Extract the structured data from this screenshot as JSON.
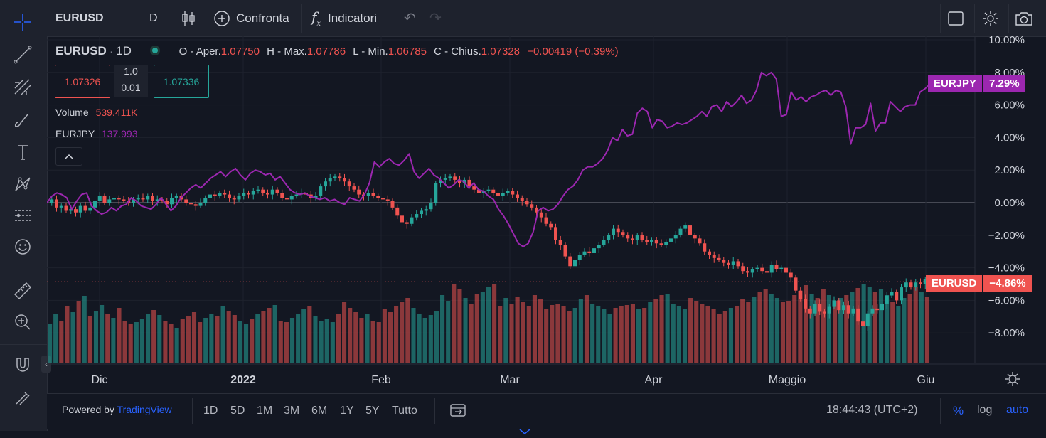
{
  "toolbar": {
    "symbol": "EURUSD",
    "interval": "D",
    "compare_label": "Confronta",
    "indicators_label": "Indicatori"
  },
  "legend": {
    "symbol": "EURUSD",
    "interval": "1D",
    "open_label": "O - Aper.",
    "open": "1.07750",
    "high_label": "H - Max.",
    "high": "1.07786",
    "low_label": "L - Min.",
    "low": "1.06785",
    "close_label": "C - Chius.",
    "close": "1.07328",
    "change": "−0.00419 (−0.39%)",
    "bid": "1.07326",
    "ask": "1.07336",
    "spread_top": "1.0",
    "spread_bottom": "0.01",
    "volume_label": "Volume",
    "volume_value": "539.411K",
    "compare_symbol": "EURJPY",
    "compare_value": "137.993"
  },
  "chart_data": {
    "type": "line",
    "x_axis_labels": [
      "Dic",
      "2022",
      "Feb",
      "Mar",
      "Apr",
      "Maggio",
      "Giu"
    ],
    "y_axis_labels": [
      "10.00%",
      "8.00%",
      "6.00%",
      "4.00%",
      "2.00%",
      "0.00%",
      "−2.00%",
      "−4.00%",
      "−6.00%",
      "−8.00%"
    ],
    "ylim": [
      -10,
      10
    ],
    "y_unit": "%",
    "series": [
      {
        "name": "EURJPY",
        "color": "#9c27b0",
        "badge_value": "7.29%",
        "values": [
          0.0,
          0.4,
          0.6,
          0.5,
          0.3,
          -0.4,
          0.1,
          0.5,
          0.6,
          -0.2,
          -0.5,
          -0.7,
          -0.6,
          -0.3,
          -0.5,
          -0.2,
          -0.1,
          0.3,
          0.1,
          -0.2,
          -0.3,
          -0.4,
          -0.1,
          0.3,
          -0.1,
          -0.5,
          -0.2,
          0.3,
          0.6,
          0.9,
          1.1,
          0.9,
          1.2,
          1.5,
          1.7,
          1.9,
          1.6,
          1.9,
          2.1,
          1.7,
          1.4,
          1.8,
          2.0,
          1.9,
          1.7,
          1.8,
          1.4,
          1.6,
          1.2,
          0.8,
          0.6,
          0.5,
          0.6,
          0.4,
          0.3,
          0.2,
          0.3,
          0.1,
          0.2,
          0.0,
          -0.1,
          0.3,
          0.2,
          0.1,
          0.5,
          1.2,
          2.5,
          2.2,
          2.5,
          2.7,
          2.4,
          2.3,
          2.6,
          3.0,
          1.9,
          1.5,
          1.8,
          2.1,
          1.7,
          1.5,
          1.2,
          0.9,
          1.1,
          1.4,
          1.3,
          0.9,
          1.2,
          0.8,
          0.7,
          0.4,
          0.2,
          -0.4,
          -0.8,
          -1.3,
          -1.9,
          -2.5,
          -2.7,
          -2.5,
          -1.8,
          -0.5,
          -0.3,
          -0.5,
          -0.4,
          -0.1,
          0.4,
          0.8,
          1.0,
          1.4,
          2.0,
          2.2,
          2.2,
          2.4,
          2.7,
          3.2,
          4.0,
          3.8,
          4.5,
          4.1,
          4.2,
          5.5,
          5.8,
          5.6,
          4.6,
          5.1,
          5.0,
          4.6,
          4.7,
          4.9,
          4.8,
          4.9,
          5.1,
          5.3,
          5.6,
          5.3,
          5.9,
          6.0,
          5.6,
          6.2,
          5.9,
          6.2,
          6.6,
          6.1,
          6.3,
          6.9,
          8.0,
          7.8,
          8.0,
          7.6,
          5.3,
          5.4,
          6.8,
          6.3,
          6.5,
          6.2,
          6.5,
          6.6,
          6.8,
          6.9,
          6.6,
          6.9,
          6.8,
          5.9,
          3.6,
          4.6,
          4.6,
          4.8,
          6.1,
          4.4,
          4.9,
          4.9,
          6.2,
          5.9,
          5.6,
          5.9,
          6.0,
          6.0,
          6.8,
          7.0,
          7.29
        ]
      },
      {
        "name": "EURUSD",
        "color": "#ef5350",
        "badge_value": "−4.86%",
        "values": [
          0.0,
          0.2,
          -0.3,
          -0.2,
          -0.5,
          -0.4,
          -0.6,
          -0.2,
          -0.5,
          -0.3,
          0.1,
          0.4,
          0.0,
          0.2,
          0.3,
          0.2,
          0.1,
          0.0,
          0.2,
          0.3,
          0.2,
          0.4,
          0.1,
          0.2,
          0.1,
          -0.1,
          0.3,
          0.4,
          0.2,
          0.0,
          -0.1,
          -0.2,
          0.0,
          0.3,
          0.5,
          0.4,
          0.6,
          0.5,
          0.3,
          0.2,
          0.4,
          0.6,
          0.5,
          0.7,
          0.8,
          0.6,
          0.5,
          0.8,
          0.6,
          0.3,
          0.2,
          0.4,
          0.5,
          0.6,
          0.5,
          0.3,
          0.4,
          1.0,
          1.3,
          1.5,
          1.6,
          1.5,
          1.3,
          1.0,
          0.8,
          0.5,
          0.4,
          0.6,
          0.4,
          0.3,
          0.2,
          0.1,
          -0.3,
          -0.8,
          -1.2,
          -1.3,
          -0.9,
          -0.7,
          -0.5,
          -0.4,
          0.0,
          1.2,
          1.4,
          1.5,
          1.6,
          1.4,
          1.2,
          1.4,
          1.0,
          0.8,
          0.6,
          0.7,
          0.8,
          0.6,
          0.4,
          0.6,
          0.7,
          0.5,
          0.3,
          0.1,
          -0.1,
          -0.3,
          -0.6,
          -0.9,
          -1.3,
          -1.5,
          -2.3,
          -2.6,
          -3.3,
          -3.9,
          -3.5,
          -3.2,
          -3.0,
          -3.1,
          -2.8,
          -2.6,
          -2.3,
          -2.0,
          -1.6,
          -1.8,
          -2.0,
          -2.2,
          -2.3,
          -2.0,
          -2.3,
          -2.4,
          -2.3,
          -2.5,
          -2.6,
          -2.4,
          -2.2,
          -2.0,
          -1.6,
          -1.4,
          -2.0,
          -2.2,
          -2.5,
          -3.0,
          -3.2,
          -3.4,
          -3.5,
          -3.7,
          -3.8,
          -3.6,
          -3.9,
          -4.2,
          -4.3,
          -4.1,
          -4.0,
          -4.2,
          -4.3,
          -3.8,
          -4.1,
          -4.0,
          -4.3,
          -4.6,
          -5.4,
          -5.9,
          -6.5,
          -6.8,
          -6.2,
          -6.7,
          -6.8,
          -6.4,
          -6.0,
          -6.6,
          -6.3,
          -6.8,
          -6.5,
          -7.3,
          -7.6,
          -6.8,
          -6.5,
          -6.6,
          -6.2,
          -5.7,
          -5.5,
          -6.0,
          -5.2,
          -4.9,
          -5.2,
          -4.9,
          -5.0,
          -4.7,
          -4.86
        ]
      }
    ],
    "volume_bars": [
      55,
      70,
      60,
      80,
      72,
      88,
      95,
      66,
      74,
      82,
      70,
      64,
      78,
      60,
      55,
      58,
      62,
      70,
      75,
      68,
      60,
      55,
      50,
      62,
      66,
      72,
      58,
      64,
      70,
      66,
      80,
      74,
      68,
      60,
      56,
      62,
      70,
      74,
      78,
      82,
      60,
      58,
      64,
      70,
      76,
      80,
      66,
      60,
      62,
      58,
      70,
      86,
      78,
      72,
      64,
      70,
      60,
      58,
      76,
      72,
      80,
      86,
      92,
      78,
      70,
      64,
      68,
      74,
      96,
      88,
      112,
      104,
      92,
      84,
      98,
      100,
      108,
      112,
      80,
      92,
      84,
      94,
      86,
      80,
      96,
      90,
      76,
      82,
      84,
      80,
      74,
      78,
      90,
      96,
      84,
      80,
      76,
      70,
      78,
      80,
      82,
      84,
      76,
      78,
      86,
      90,
      96,
      98,
      84,
      80,
      76,
      92,
      88,
      84,
      80,
      76,
      70,
      74,
      78,
      80,
      90,
      86,
      94,
      100,
      104,
      98,
      92,
      86,
      88,
      96,
      102,
      110,
      98,
      92,
      104,
      96,
      88,
      92,
      96,
      100,
      106,
      112,
      108,
      100,
      104,
      96,
      86,
      80,
      92,
      98,
      108,
      100,
      94
    ],
    "grid": true,
    "axis_position": "right"
  },
  "right_axis": {
    "eurjpy_badge": "EURJPY",
    "eurjpy_badge_value": "7.29%",
    "eurusd_badge": "EURUSD",
    "eurusd_badge_value": "−4.86%"
  },
  "bottom": {
    "powered_by": "Powered by",
    "brand": "TradingView",
    "ranges": [
      "1D",
      "5D",
      "1M",
      "3M",
      "6M",
      "1Y",
      "5Y",
      "Tutto"
    ],
    "clock": "18:44:43 (UTC+2)",
    "percent_label": "%",
    "log_label": "log",
    "auto_label": "auto"
  },
  "colors": {
    "up": "#26a69a",
    "down": "#ef5350",
    "compare": "#9c27b0",
    "accent": "#2962ff",
    "bg": "#131722",
    "panel": "#1e222d"
  }
}
